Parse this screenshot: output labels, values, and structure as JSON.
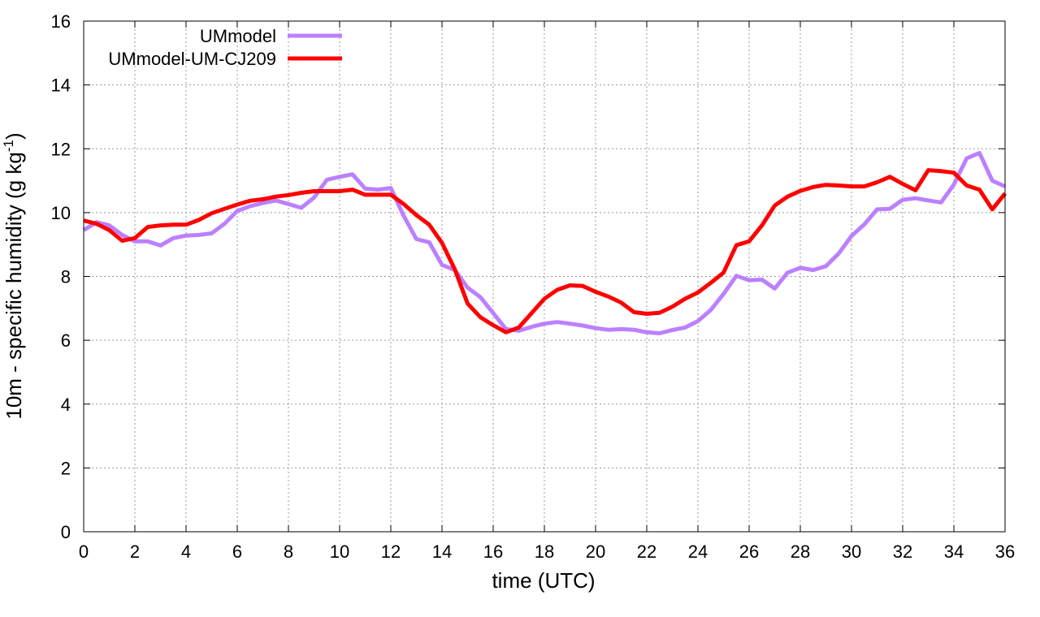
{
  "chart_data": {
    "type": "line",
    "xlabel": "time (UTC)",
    "ylabel": "10m - specific humidity (g kg",
    "ylabel_sup": "-1",
    "ylabel_close": ")",
    "xlim": [
      0,
      36
    ],
    "ylim": [
      0,
      16
    ],
    "xticks": [
      "0",
      "2",
      "4",
      "6",
      "8",
      "10",
      "12",
      "14",
      "16",
      "18",
      "20",
      "22",
      "24",
      "26",
      "28",
      "30",
      "32",
      "34",
      "36"
    ],
    "yticks": [
      "0",
      "2",
      "4",
      "6",
      "8",
      "10",
      "12",
      "14",
      "16"
    ],
    "grid": true,
    "legend_position": "top-left",
    "series": [
      {
        "name": "UMmodel",
        "color": "#bb80ff",
        "x": [
          0,
          0.5,
          1,
          1.5,
          2,
          2.5,
          3,
          3.5,
          4,
          4.5,
          5,
          5.5,
          6,
          6.5,
          7,
          7.5,
          8,
          8.5,
          9,
          9.5,
          10,
          10.5,
          11,
          11.5,
          12,
          12.5,
          13,
          13.5,
          14,
          14.5,
          15,
          15.5,
          16,
          16.5,
          17,
          17.5,
          18,
          18.5,
          19,
          19.5,
          20,
          20.5,
          21,
          21.5,
          22,
          22.5,
          23,
          23.5,
          24,
          24.5,
          25,
          25.5,
          26,
          26.5,
          27,
          27.5,
          28,
          28.5,
          29,
          29.5,
          30,
          30.5,
          31,
          31.5,
          32,
          32.5,
          33,
          33.5,
          34,
          34.5,
          35,
          35.5,
          36
        ],
        "values": [
          9.45,
          9.7,
          9.6,
          9.3,
          9.1,
          9.1,
          8.97,
          9.2,
          9.28,
          9.3,
          9.35,
          9.65,
          10.05,
          10.2,
          10.3,
          10.38,
          10.27,
          10.15,
          10.47,
          11.03,
          11.12,
          11.2,
          10.75,
          10.72,
          10.77,
          9.9,
          9.17,
          9.07,
          8.36,
          8.2,
          7.65,
          7.35,
          6.85,
          6.35,
          6.3,
          6.42,
          6.52,
          6.57,
          6.52,
          6.46,
          6.38,
          6.33,
          6.35,
          6.33,
          6.25,
          6.22,
          6.32,
          6.4,
          6.6,
          6.95,
          7.45,
          8.02,
          7.88,
          7.9,
          7.62,
          8.12,
          8.27,
          8.2,
          8.32,
          8.72,
          9.27,
          9.63,
          10.1,
          10.12,
          10.4,
          10.45,
          10.38,
          10.32,
          10.88,
          11.7,
          11.87,
          11,
          10.82
        ]
      },
      {
        "name": "UMmodel-UM-CJ209",
        "color": "#ff0000",
        "x": [
          0,
          0.5,
          1,
          1.5,
          2,
          2.5,
          3,
          3.5,
          4,
          4.5,
          5,
          5.5,
          6,
          6.5,
          7,
          7.5,
          8,
          8.5,
          9,
          9.5,
          10,
          10.5,
          11,
          11.5,
          12,
          12.5,
          13,
          13.5,
          14,
          14.5,
          15,
          15.5,
          16,
          16.5,
          17,
          17.5,
          18,
          18.5,
          19,
          19.5,
          20,
          20.5,
          21,
          21.5,
          22,
          22.5,
          23,
          23.5,
          24,
          24.5,
          25,
          25.5,
          26,
          26.5,
          27,
          27.5,
          28,
          28.5,
          29,
          29.5,
          30,
          30.5,
          31,
          31.5,
          32,
          32.5,
          33,
          33.5,
          34,
          34.5,
          35,
          35.5,
          36
        ],
        "values": [
          9.75,
          9.65,
          9.45,
          9.12,
          9.2,
          9.55,
          9.6,
          9.62,
          9.62,
          9.77,
          9.98,
          10.12,
          10.25,
          10.37,
          10.42,
          10.5,
          10.55,
          10.62,
          10.67,
          10.67,
          10.67,
          10.72,
          10.56,
          10.56,
          10.56,
          10.27,
          9.92,
          9.62,
          9.05,
          8.22,
          7.15,
          6.72,
          6.47,
          6.25,
          6.4,
          6.85,
          7.3,
          7.58,
          7.72,
          7.7,
          7.52,
          7.37,
          7.18,
          6.88,
          6.83,
          6.86,
          7.05,
          7.3,
          7.5,
          7.8,
          8.12,
          8.98,
          9.1,
          9.6,
          10.22,
          10.5,
          10.68,
          10.8,
          10.87,
          10.85,
          10.82,
          10.82,
          10.95,
          11.12,
          10.9,
          10.7,
          11.33,
          11.3,
          11.25,
          10.85,
          10.72,
          10.1,
          10.6
        ]
      }
    ]
  }
}
